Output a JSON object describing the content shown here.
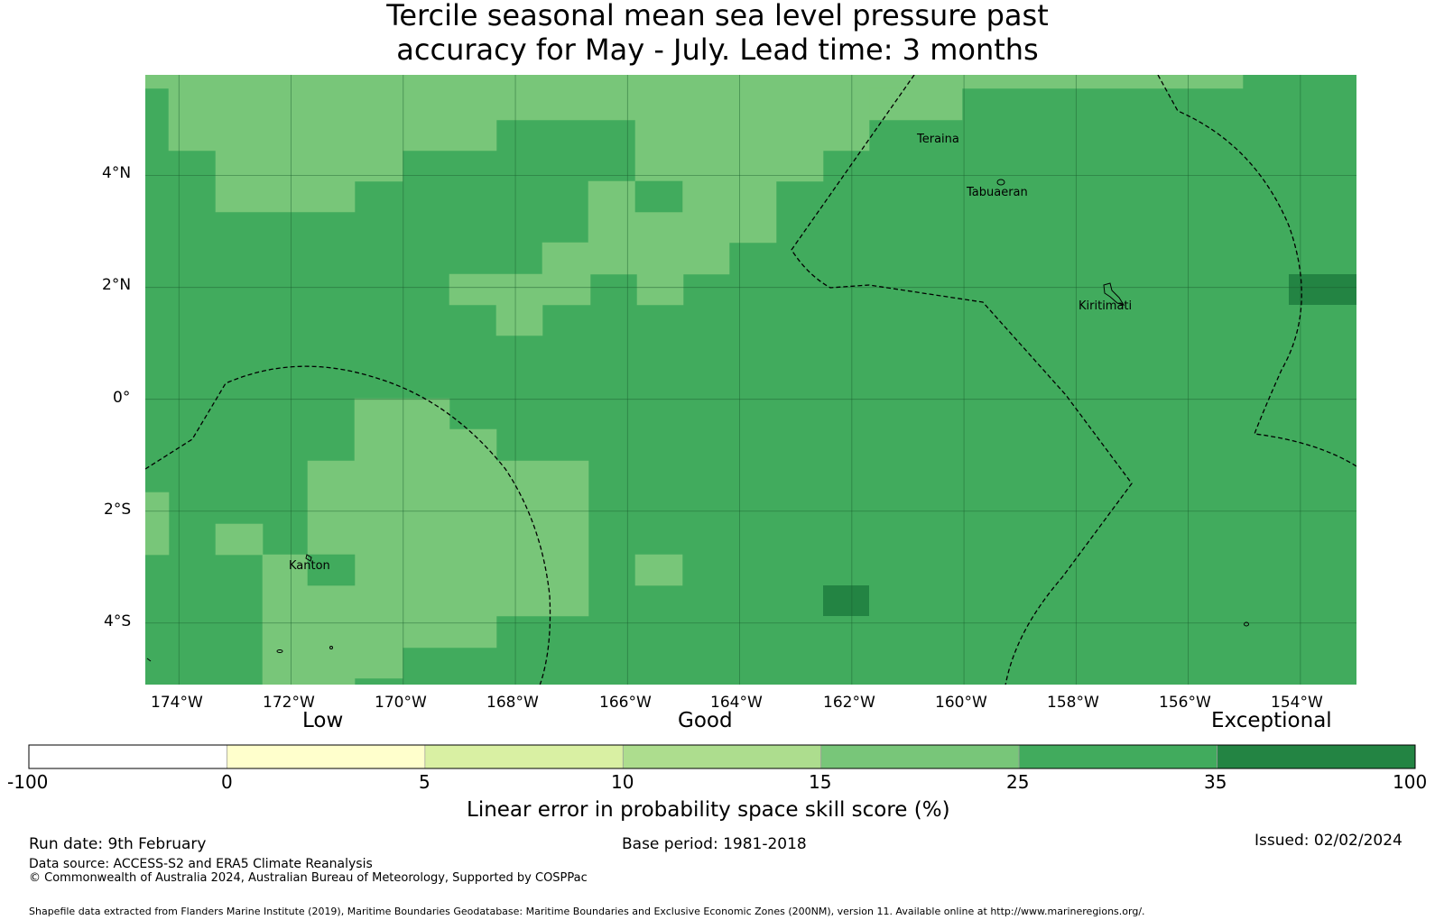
{
  "title": {
    "line1": "Tercile seasonal mean sea level pressure past",
    "line2": "accuracy for May - July. Lead time: 3 months"
  },
  "map": {
    "lon_range": [
      -174.6,
      -153.0
    ],
    "lat_range": [
      -5.1,
      5.8
    ],
    "lon_ticks": [
      "174°W",
      "172°W",
      "170°W",
      "168°W",
      "166°W",
      "164°W",
      "162°W",
      "160°W",
      "158°W",
      "156°W",
      "154°W"
    ],
    "lat_ticks": [
      "4°N",
      "2°N",
      "0°",
      "2°S",
      "4°S"
    ],
    "places": [
      {
        "name": "Teraina",
        "lon": -160.4,
        "lat": 4.68
      },
      {
        "name": "Tabuaeran",
        "lon": -159.4,
        "lat": 3.85
      },
      {
        "name": "Kiritimati",
        "lon": -157.4,
        "lat": 1.85
      },
      {
        "name": "Kanton",
        "lon": -171.7,
        "lat": -2.82
      }
    ],
    "colors": {
      "band_15_25": "#78c679",
      "band_25_35": "#41ab5d",
      "band_35_100": "#238443"
    }
  },
  "colorbar": {
    "category_labels": [
      "Low",
      "Good",
      "Exceptional"
    ],
    "ticks": [
      "-100",
      "0",
      "5",
      "10",
      "15",
      "25",
      "35",
      "100"
    ],
    "colors": [
      "#ffffff",
      "#ffffcc",
      "#d9f0a3",
      "#addd8e",
      "#78c679",
      "#41ab5d",
      "#238443"
    ],
    "title": "Linear error in probability space skill score (%)"
  },
  "footer": {
    "run_date": "Run date: 9th February",
    "base_period": "Base period: 1981-2018",
    "issued": "Issued: 02/02/2024",
    "data_source": "Data source: ACCESS-S2 and ERA5 Climate Reanalysis",
    "copyright": "© Commonwealth of Australia 2024, Australian Bureau of Meteorology, Supported by COSPPac",
    "shapefile": "Shapefile data extracted from Flanders Marine Institute (2019), Maritime Boundaries Geodatabase: Maritime Boundaries and Exclusive Economic Zones (200NM), version 11. Available online at http://www.marineregions.org/."
  }
}
